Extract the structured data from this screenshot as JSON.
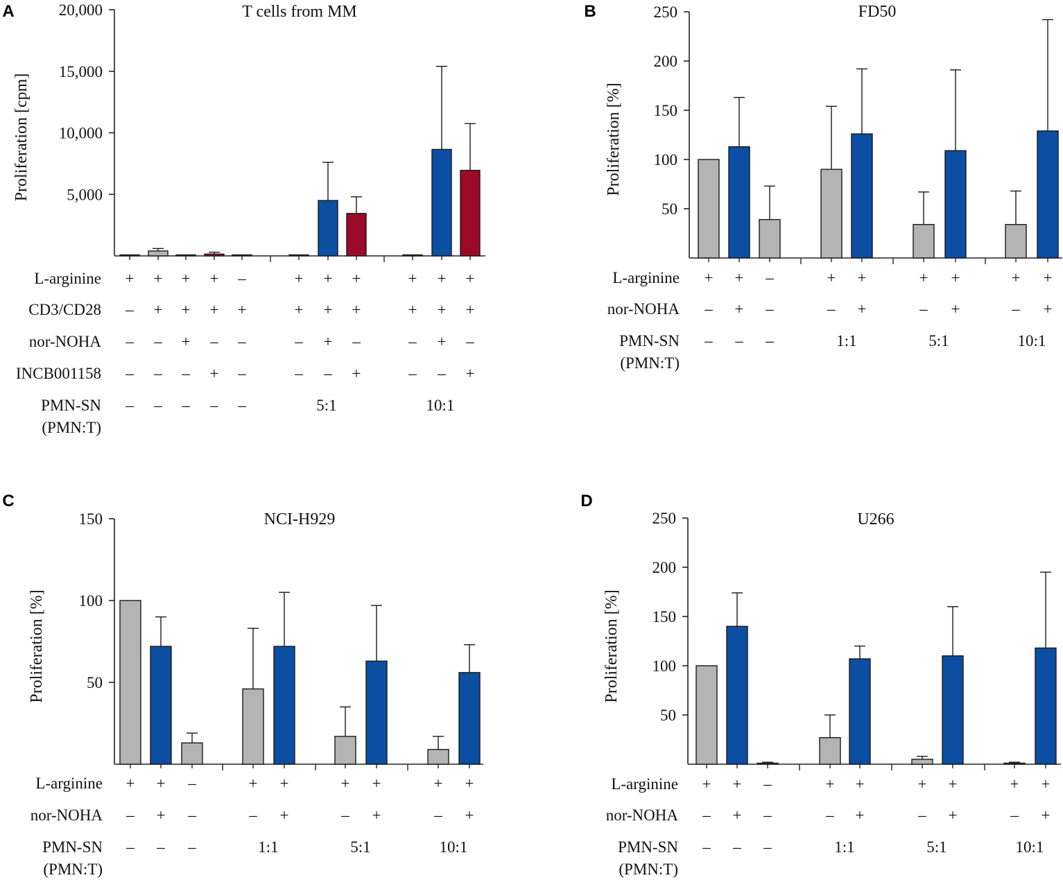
{
  "colors": {
    "gray": "#b4b4b4",
    "blue": "#0b4ea2",
    "red": "#9b0a29",
    "axis": "#222222"
  },
  "chart_data": [
    {
      "panel": "A",
      "type": "bar",
      "title": "T cells from MM",
      "ylabel": "Proliferation [cpm]",
      "ylim": [
        0,
        20000
      ],
      "yticks": [
        5000,
        10000,
        15000,
        20000
      ],
      "ytick_labels": [
        "5,000",
        "10,000",
        "15,000",
        "20,000"
      ],
      "bars": [
        {
          "value": 50,
          "err": 0,
          "color": "gray"
        },
        {
          "value": 400,
          "err": 200,
          "color": "gray"
        },
        {
          "value": 80,
          "err": 0,
          "color": "gray"
        },
        {
          "value": 150,
          "err": 150,
          "color": "red"
        },
        {
          "value": 50,
          "err": 0,
          "color": "gray"
        },
        {
          "value": 50,
          "err": 0,
          "color": "gray"
        },
        {
          "value": 4500,
          "err": 3100,
          "color": "blue"
        },
        {
          "value": 3450,
          "err": 1350,
          "color": "red"
        },
        {
          "value": 50,
          "err": 0,
          "color": "gray"
        },
        {
          "value": 8650,
          "err": 6750,
          "color": "blue"
        },
        {
          "value": 6950,
          "err": 3800,
          "color": "red"
        }
      ],
      "rows": [
        {
          "label": "L-arginine",
          "values": [
            "+",
            "+",
            "+",
            "+",
            "–",
            "+",
            "+",
            "+",
            "+",
            "+",
            "+"
          ]
        },
        {
          "label": "CD3/CD28",
          "values": [
            "–",
            "+",
            "+",
            "+",
            "+",
            "+",
            "+",
            "+",
            "+",
            "+",
            "+"
          ]
        },
        {
          "label": "nor-NOHA",
          "values": [
            "–",
            "–",
            "+",
            "–",
            "–",
            "–",
            "+",
            "–",
            "–",
            "+",
            "–"
          ]
        },
        {
          "label": "INCB001158",
          "values": [
            "–",
            "–",
            "–",
            "+",
            "–",
            "–",
            "–",
            "+",
            "–",
            "–",
            "+"
          ]
        },
        {
          "label": "PMN-SN",
          "label2": "(PMN:T)",
          "values": [
            "–",
            "–",
            "–",
            "–",
            "–"
          ],
          "groups": [
            "5:1",
            "10:1"
          ]
        }
      ]
    },
    {
      "panel": "B",
      "type": "bar",
      "title": "FD50",
      "ylabel": "Proliferation [%]",
      "ylim": [
        0,
        250
      ],
      "yticks": [
        50,
        100,
        150,
        200,
        250
      ],
      "ytick_labels": [
        "50",
        "100",
        "150",
        "200",
        "250"
      ],
      "bars": [
        {
          "value": 100,
          "err": 0,
          "color": "gray"
        },
        {
          "value": 113,
          "err": 50,
          "color": "blue"
        },
        {
          "value": 39,
          "err": 34,
          "color": "gray"
        },
        {
          "value": 90,
          "err": 64,
          "color": "gray"
        },
        {
          "value": 126,
          "err": 66,
          "color": "blue"
        },
        {
          "value": 34,
          "err": 33,
          "color": "gray"
        },
        {
          "value": 109,
          "err": 82,
          "color": "blue"
        },
        {
          "value": 34,
          "err": 34,
          "color": "gray"
        },
        {
          "value": 129,
          "err": 113,
          "color": "blue"
        }
      ],
      "rows": [
        {
          "label": "L-arginine",
          "values": [
            "+",
            "+",
            "–",
            "+",
            "+",
            "+",
            "+",
            "+",
            "+"
          ]
        },
        {
          "label": "nor-NOHA",
          "values": [
            "–",
            "+",
            "–",
            "–",
            "+",
            "–",
            "+",
            "–",
            "+"
          ]
        },
        {
          "label": "PMN-SN",
          "label2": "(PMN:T)",
          "values": [
            "–",
            "–",
            "–"
          ],
          "groups": [
            "1:1",
            "5:1",
            "10:1"
          ]
        }
      ]
    },
    {
      "panel": "C",
      "type": "bar",
      "title": "NCI-H929",
      "ylabel": "Proliferation [%]",
      "ylim": [
        0,
        150
      ],
      "yticks": [
        50,
        100,
        150
      ],
      "ytick_labels": [
        "50",
        "100",
        "150"
      ],
      "bars": [
        {
          "value": 100,
          "err": 0,
          "color": "gray"
        },
        {
          "value": 72,
          "err": 18,
          "color": "blue"
        },
        {
          "value": 13,
          "err": 6,
          "color": "gray"
        },
        {
          "value": 46,
          "err": 37,
          "color": "gray"
        },
        {
          "value": 72,
          "err": 33,
          "color": "blue"
        },
        {
          "value": 17,
          "err": 18,
          "color": "gray"
        },
        {
          "value": 63,
          "err": 34,
          "color": "blue"
        },
        {
          "value": 9,
          "err": 8,
          "color": "gray"
        },
        {
          "value": 56,
          "err": 17,
          "color": "blue"
        }
      ],
      "rows": [
        {
          "label": "L-arginine",
          "values": [
            "+",
            "+",
            "–",
            "+",
            "+",
            "+",
            "+",
            "+",
            "+"
          ]
        },
        {
          "label": "nor-NOHA",
          "values": [
            "–",
            "+",
            "–",
            "–",
            "+",
            "–",
            "+",
            "–",
            "+"
          ]
        },
        {
          "label": "PMN-SN",
          "label2": "(PMN:T)",
          "values": [
            "–",
            "–",
            "–"
          ],
          "groups": [
            "1:1",
            "5:1",
            "10:1"
          ]
        }
      ]
    },
    {
      "panel": "D",
      "type": "bar",
      "title": "U266",
      "ylabel": "Proliferation [%]",
      "ylim": [
        0,
        250
      ],
      "yticks": [
        50,
        100,
        150,
        200,
        250
      ],
      "ytick_labels": [
        "50",
        "100",
        "150",
        "200",
        "250"
      ],
      "bars": [
        {
          "value": 100,
          "err": 0,
          "color": "gray"
        },
        {
          "value": 140,
          "err": 34,
          "color": "blue"
        },
        {
          "value": 1,
          "err": 1,
          "color": "gray"
        },
        {
          "value": 27,
          "err": 23,
          "color": "gray"
        },
        {
          "value": 107,
          "err": 13,
          "color": "blue"
        },
        {
          "value": 5,
          "err": 3,
          "color": "gray"
        },
        {
          "value": 110,
          "err": 50,
          "color": "blue"
        },
        {
          "value": 1,
          "err": 1,
          "color": "gray"
        },
        {
          "value": 118,
          "err": 77,
          "color": "blue"
        }
      ],
      "rows": [
        {
          "label": "L-arginine",
          "values": [
            "+",
            "+",
            "–",
            "+",
            "+",
            "+",
            "+",
            "+",
            "+"
          ]
        },
        {
          "label": "nor-NOHA",
          "values": [
            "–",
            "+",
            "–",
            "–",
            "+",
            "–",
            "+",
            "–",
            "+"
          ]
        },
        {
          "label": "PMN-SN",
          "label2": "(PMN:T)",
          "values": [
            "–",
            "–",
            "–"
          ],
          "groups": [
            "1:1",
            "5:1",
            "10:1"
          ]
        }
      ]
    }
  ]
}
